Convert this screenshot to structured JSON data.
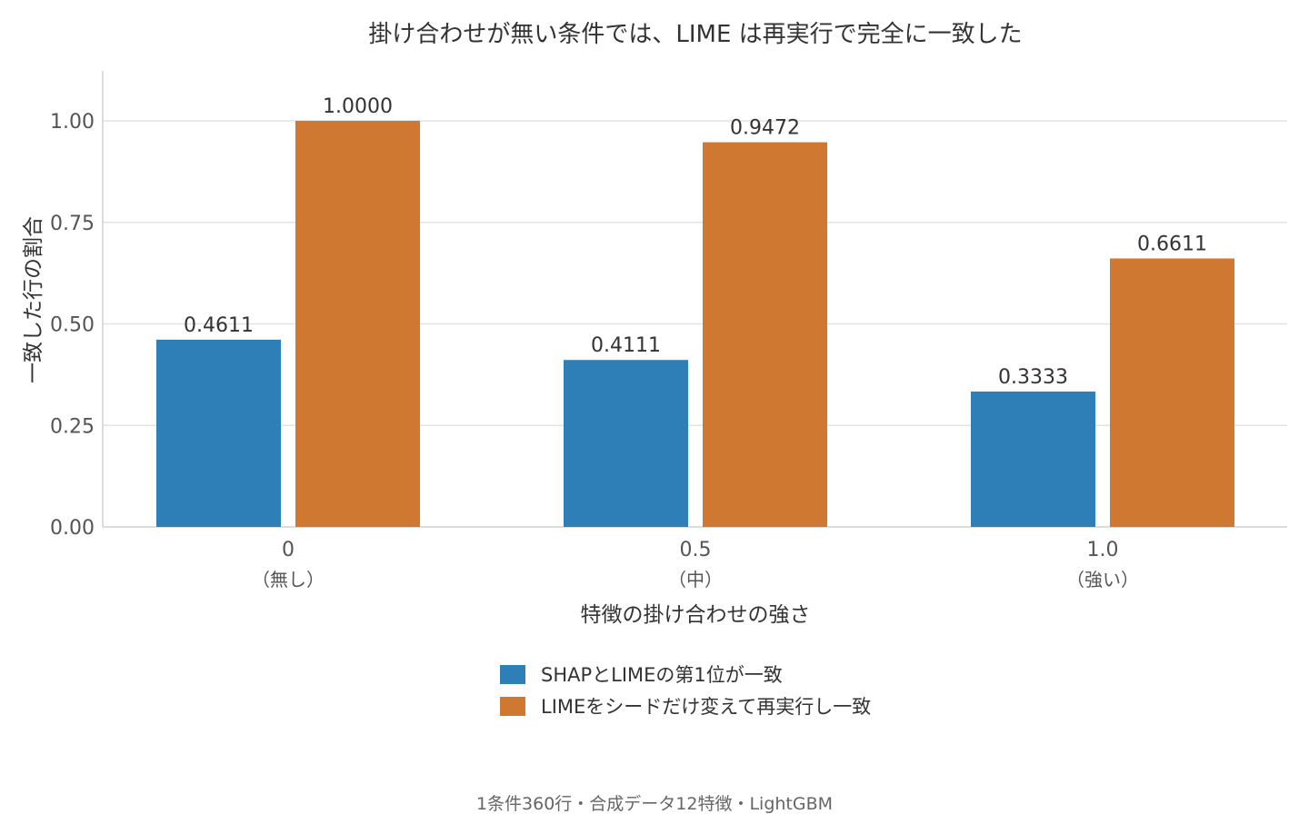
{
  "chart_data": {
    "type": "bar",
    "title": "掛け合わせが無い条件では、LIME は再実行で完全に一致した",
    "xlabel": "特徴の掛け合わせの強さ",
    "ylabel": "一致した行の割合",
    "categories": [
      "0",
      "0.5",
      "1.0"
    ],
    "category_sublabels": [
      "（無し）",
      "（中）",
      "（強い）"
    ],
    "yticks": [
      "0.00",
      "0.25",
      "0.50",
      "0.75",
      "1.00"
    ],
    "ylim": [
      0,
      1.1
    ],
    "grid": true,
    "legend_position": "bottom",
    "series": [
      {
        "name": "SHAPとLIMEの第1位が一致",
        "values": [
          0.4611,
          0.4111,
          0.3333
        ],
        "labels": [
          "0.4611",
          "0.4111",
          "0.3333"
        ],
        "color": "#2e7eb8"
      },
      {
        "name": "LIMEをシードだけ変えて再実行し一致",
        "values": [
          1.0,
          0.9472,
          0.6611
        ],
        "labels": [
          "1.0000",
          "0.9472",
          "0.6611"
        ],
        "color": "#cf7831"
      }
    ],
    "footnote": "1条件360行・合成データ12特徴・LightGBM"
  }
}
